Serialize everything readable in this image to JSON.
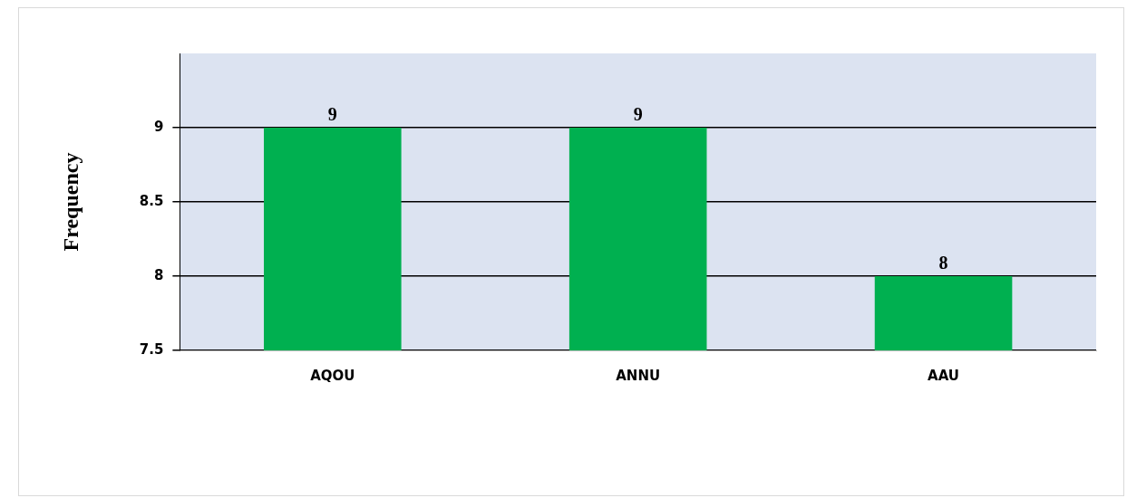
{
  "chart_data": {
    "type": "bar",
    "ylabel": "Frequency",
    "categories": [
      "AQOU",
      "ANNU",
      "AAU"
    ],
    "values": [
      9,
      9,
      8
    ],
    "color": "#00b050",
    "ylim": [
      7.5,
      9.5
    ],
    "yticks": [
      7.5,
      8,
      8.5,
      9
    ],
    "grid": "y",
    "data_labels": true,
    "legend": false
  }
}
